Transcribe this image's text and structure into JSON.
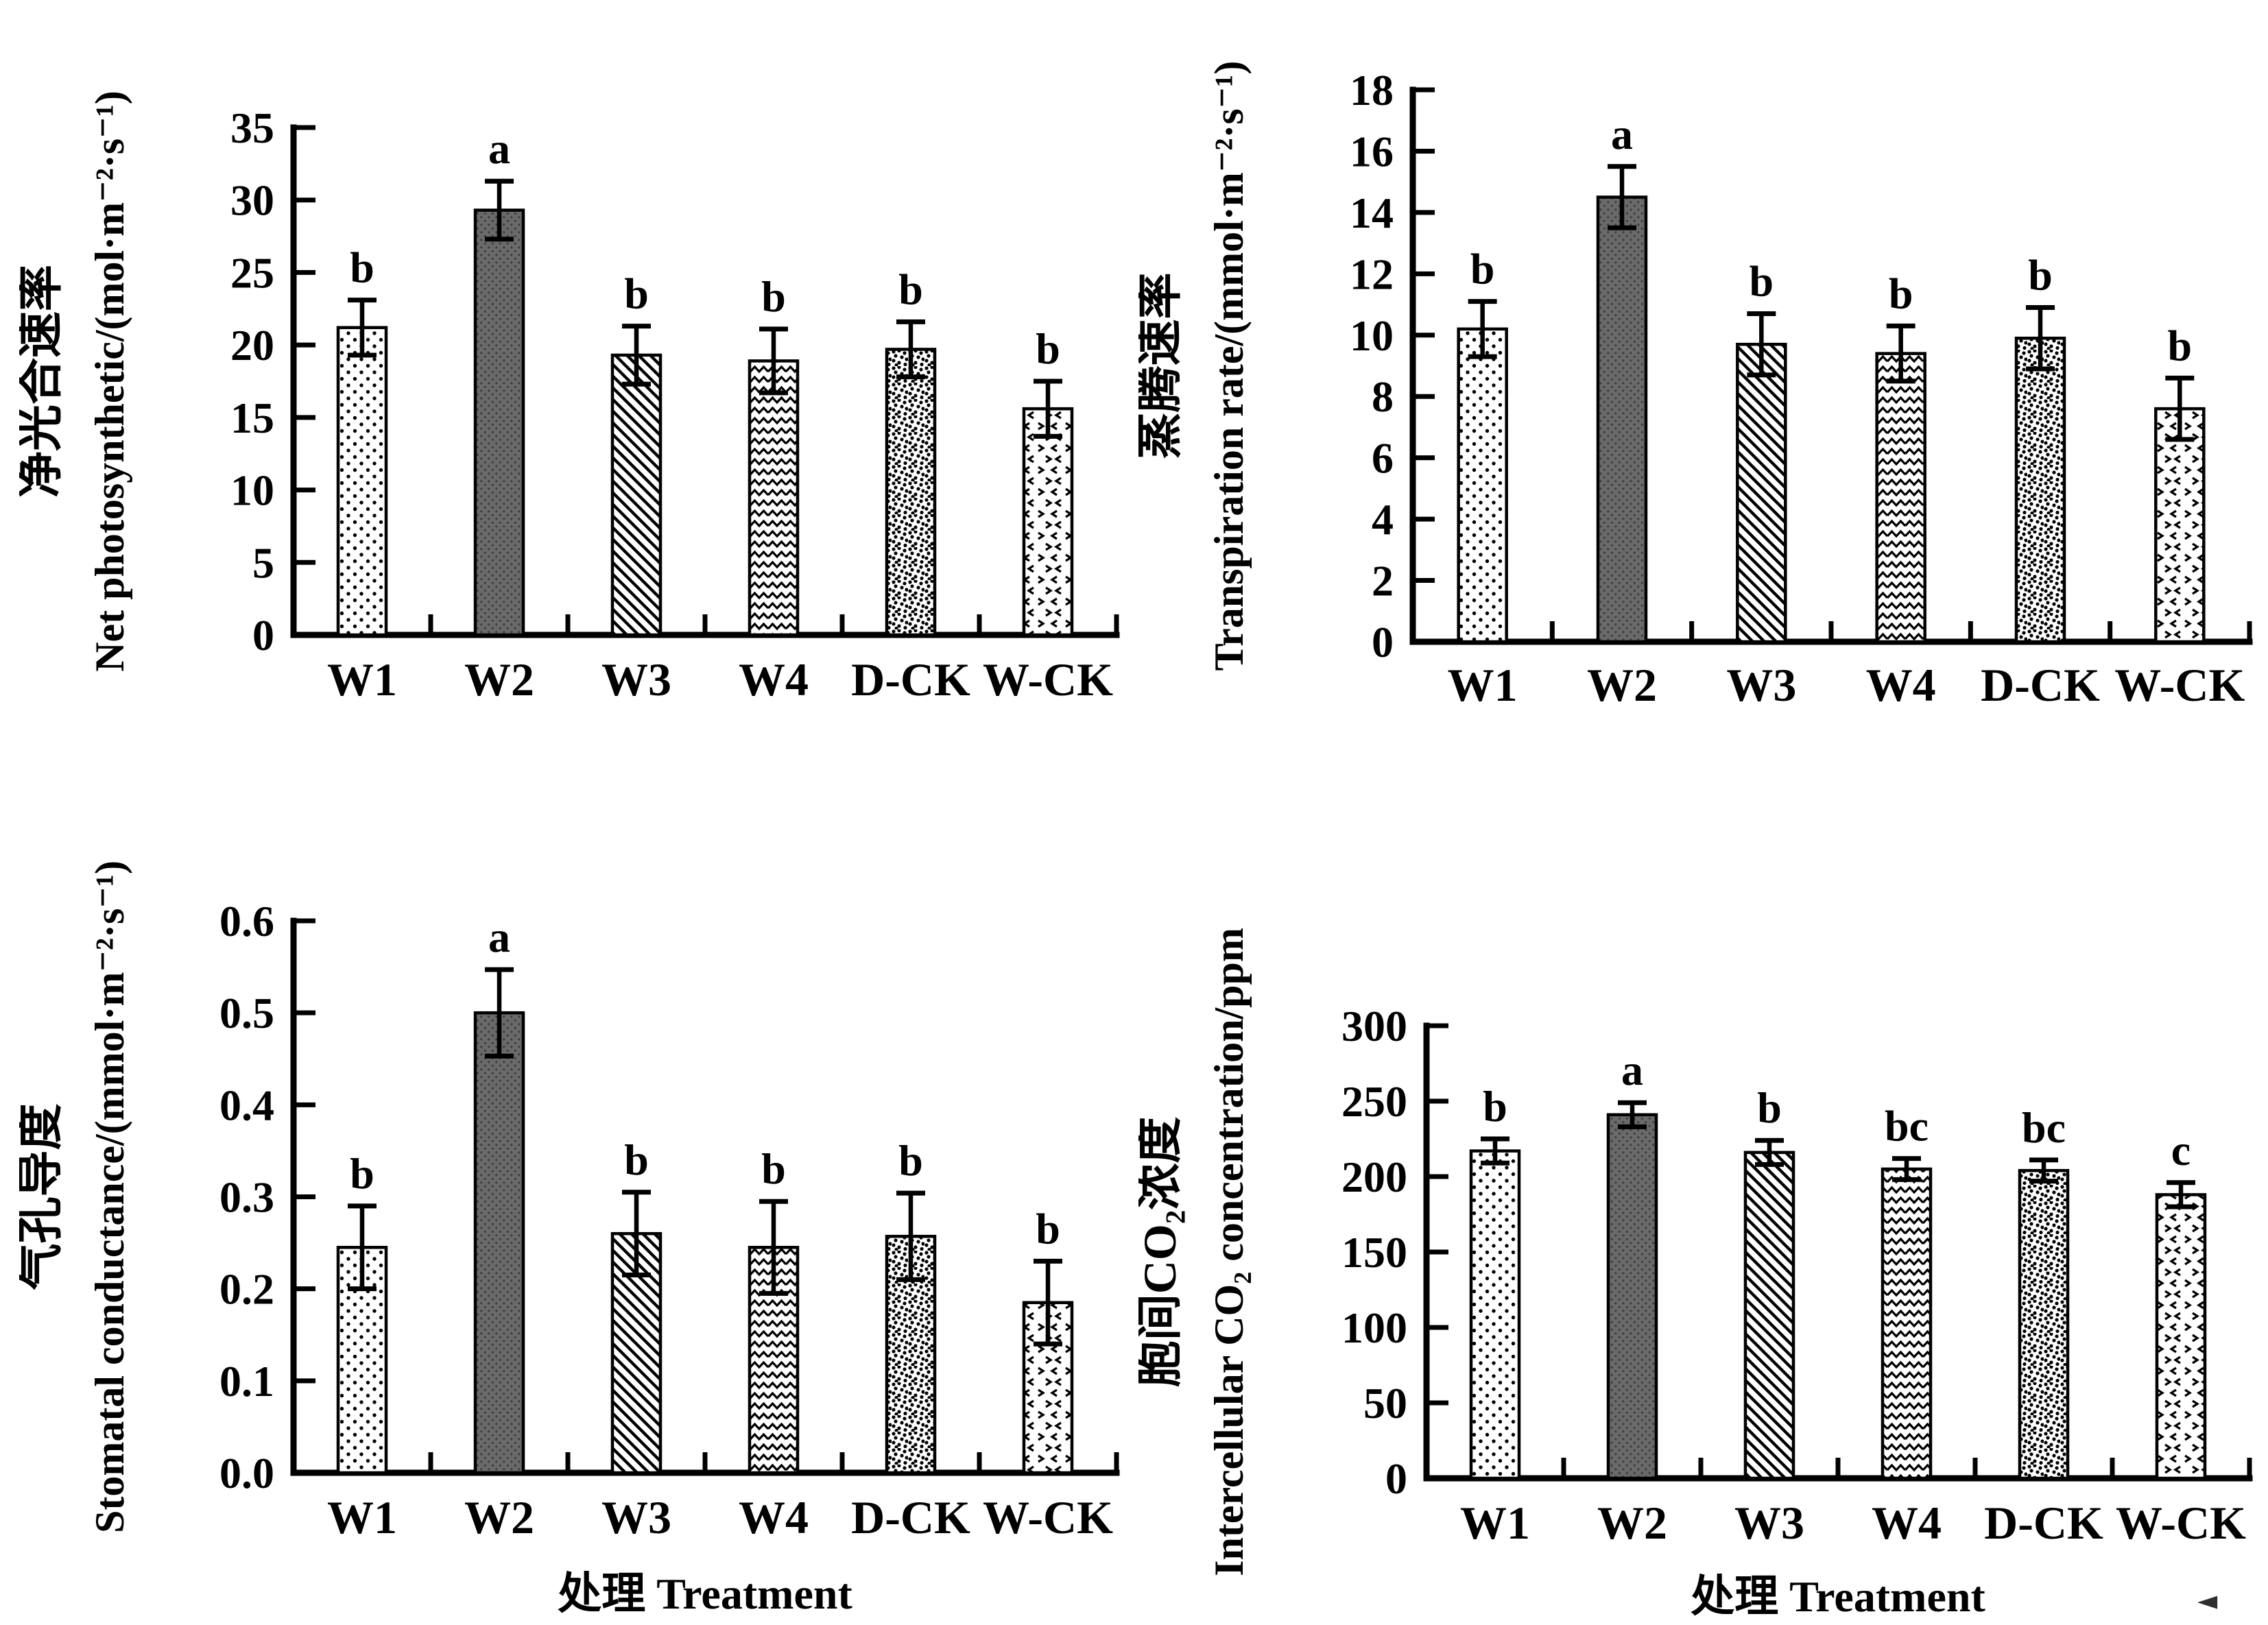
{
  "figure": {
    "description": "Four bar charts of gas-exchange parameters under six treatments",
    "background": "#ffffff",
    "ink_color": "#000000",
    "colors": {
      "w2_bar": "#6a6a6a",
      "w2_bar_dot": "#404040",
      "background": "#ffffff",
      "ink": "#000000"
    },
    "categories": [
      "W1",
      "W2",
      "W3",
      "W4",
      "D-CK",
      "W-CK"
    ],
    "x_axis_title": "处理  Treatment",
    "pattern_legend": {
      "dots": "light dotted fill (W1)",
      "dark": "dark gray dotted fill (W2)",
      "diag": "diagonal hatch fill (W3)",
      "zigzag": "horizontal zigzag wave fill (W4)",
      "speckle": "dense speckle dot fill (D-CK)",
      "chevron": "sparse chevron fill (W-CK)"
    }
  },
  "chart_data": [
    {
      "id": "net-photosynthetic-rate",
      "position": "top-left",
      "type": "bar",
      "ylabel_cn": "净光合速率",
      "ylabel_en": "Net photosynthetic/(mol·m⁻²·s⁻¹)",
      "xlabel": "",
      "categories": [
        "W1",
        "W2",
        "W3",
        "W4",
        "D-CK",
        "W-CK"
      ],
      "values": [
        21.2,
        29.3,
        19.3,
        18.9,
        19.7,
        15.6
      ],
      "errors": [
        1.9,
        2.0,
        2.0,
        2.2,
        1.9,
        1.9
      ],
      "sig_letters": [
        "b",
        "a",
        "b",
        "b",
        "b",
        "b"
      ],
      "ylim": [
        0,
        35
      ],
      "yticks": [
        0,
        5,
        10,
        15,
        20,
        25,
        30,
        35
      ],
      "ytick_labels": [
        "0",
        "5",
        "10",
        "15",
        "20",
        "25",
        "30",
        "35"
      ],
      "grid": false,
      "legend_position": "none",
      "bar_patterns": [
        "dots",
        "dark",
        "diag",
        "zigzag",
        "speckle",
        "chevron"
      ]
    },
    {
      "id": "transpiration-rate",
      "position": "top-right",
      "type": "bar",
      "ylabel_cn": "蒸腾速率",
      "ylabel_en": "Transpiration rate/(mmol·m⁻²·s⁻¹)",
      "xlabel": "",
      "categories": [
        "W1",
        "W2",
        "W3",
        "W4",
        "D-CK",
        "W-CK"
      ],
      "values": [
        10.2,
        14.5,
        9.7,
        9.4,
        9.9,
        7.6
      ],
      "errors": [
        0.9,
        1.0,
        1.0,
        0.9,
        1.0,
        1.0
      ],
      "sig_letters": [
        "b",
        "a",
        "b",
        "b",
        "b",
        "b"
      ],
      "ylim": [
        0,
        18
      ],
      "yticks": [
        0,
        2,
        4,
        6,
        8,
        10,
        12,
        14,
        16,
        18
      ],
      "ytick_labels": [
        "0",
        "2",
        "4",
        "6",
        "8",
        "10",
        "12",
        "14",
        "16",
        "18"
      ],
      "grid": false,
      "legend_position": "none",
      "bar_patterns": [
        "dots",
        "dark",
        "diag",
        "zigzag",
        "speckle",
        "chevron"
      ]
    },
    {
      "id": "stomatal-conductance",
      "position": "bottom-left",
      "type": "bar",
      "ylabel_cn": "气孔导度",
      "ylabel_en": "Stomatal conductance/(mmol·m⁻²·s⁻¹)",
      "xlabel": "处理  Treatment",
      "categories": [
        "W1",
        "W2",
        "W3",
        "W4",
        "D-CK",
        "W-CK"
      ],
      "values": [
        0.245,
        0.5,
        0.26,
        0.245,
        0.257,
        0.185
      ],
      "errors": [
        0.045,
        0.047,
        0.045,
        0.05,
        0.047,
        0.045
      ],
      "sig_letters": [
        "b",
        "a",
        "b",
        "b",
        "b",
        "b"
      ],
      "ylim": [
        0,
        0.6
      ],
      "yticks": [
        0,
        0.1,
        0.2,
        0.3,
        0.4,
        0.5,
        0.6
      ],
      "ytick_labels": [
        "0.0",
        "0.1",
        "0.2",
        "0.3",
        "0.4",
        "0.5",
        "0.6"
      ],
      "grid": false,
      "legend_position": "none",
      "bar_patterns": [
        "dots",
        "dark",
        "diag",
        "zigzag",
        "speckle",
        "chevron"
      ]
    },
    {
      "id": "intercellular-co2-concentration",
      "position": "bottom-right",
      "type": "bar",
      "ylabel_cn": "胞间CO₂浓度",
      "ylabel_en": "Intercellular CO₂ concentration/ppm",
      "xlabel": "处理  Treatment",
      "categories": [
        "W1",
        "W2",
        "W3",
        "W4",
        "D-CK",
        "W-CK"
      ],
      "values": [
        217,
        241,
        216,
        205,
        204,
        188
      ],
      "errors": [
        8,
        8,
        8,
        7,
        7,
        8
      ],
      "sig_letters": [
        "b",
        "a",
        "b",
        "bc",
        "bc",
        "c"
      ],
      "ylim": [
        0,
        300
      ],
      "yticks": [
        0,
        50,
        100,
        150,
        200,
        250,
        300
      ],
      "ytick_labels": [
        "0",
        "50",
        "100",
        "150",
        "200",
        "250",
        "300"
      ],
      "grid": false,
      "legend_position": "none",
      "bar_patterns": [
        "dots",
        "dark",
        "diag",
        "zigzag",
        "speckle",
        "chevron"
      ]
    }
  ],
  "cursor_artifact": {
    "glyph": "◄"
  }
}
